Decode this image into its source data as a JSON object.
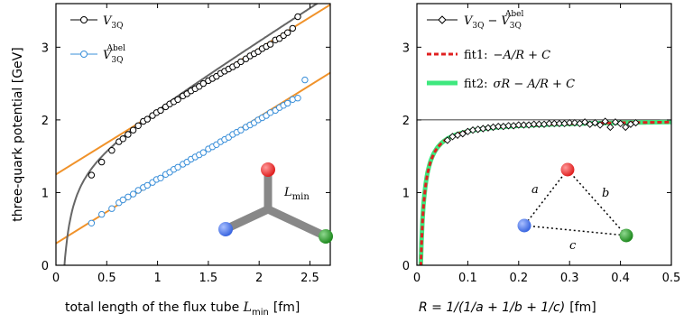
{
  "chart_data": [
    {
      "type": "scatter",
      "xlabel": "total length of the flux tube",
      "xlabel_symbol": "L",
      "xlabel_symbol_sub": "min",
      "xlabel_unit": "[fm]",
      "ylabel": "three-quark potential [GeV]",
      "xlim": [
        0,
        2.7
      ],
      "ylim": [
        0,
        3.6
      ],
      "xticks": [
        "0",
        "0.5",
        "1",
        "1.5",
        "2",
        "2.5"
      ],
      "xtick_values": [
        0,
        0.5,
        1,
        1.5,
        2,
        2.5
      ],
      "yticks": [
        "0",
        "1",
        "2",
        "3"
      ],
      "ytick_values": [
        0,
        1,
        2,
        3
      ],
      "legend_position": "top-left",
      "series": [
        {
          "name": "V",
          "name_sub": "3Q",
          "color": "#000000",
          "marker": "open-circle",
          "x": [
            0.35,
            0.45,
            0.55,
            0.62,
            0.66,
            0.71,
            0.76,
            0.81,
            0.86,
            0.9,
            0.95,
            0.99,
            1.03,
            1.08,
            1.12,
            1.16,
            1.2,
            1.25,
            1.29,
            1.33,
            1.37,
            1.41,
            1.45,
            1.5,
            1.54,
            1.58,
            1.62,
            1.66,
            1.7,
            1.74,
            1.78,
            1.82,
            1.87,
            1.91,
            1.95,
            1.99,
            2.03,
            2.07,
            2.11,
            2.16,
            2.2,
            2.24,
            2.28,
            2.33,
            2.38
          ],
          "y": [
            1.24,
            1.42,
            1.58,
            1.7,
            1.74,
            1.8,
            1.86,
            1.92,
            1.98,
            2.01,
            2.06,
            2.1,
            2.13,
            2.18,
            2.22,
            2.25,
            2.28,
            2.33,
            2.36,
            2.4,
            2.43,
            2.46,
            2.5,
            2.54,
            2.57,
            2.6,
            2.64,
            2.67,
            2.7,
            2.73,
            2.76,
            2.8,
            2.84,
            2.88,
            2.91,
            2.94,
            2.98,
            3.01,
            3.04,
            3.1,
            3.12,
            3.16,
            3.2,
            3.26,
            3.42
          ]
        },
        {
          "name": "V",
          "name_sub": "3Q",
          "name_sup": "Abel",
          "color": "#3a8fd9",
          "marker": "open-circle",
          "x": [
            0.35,
            0.45,
            0.55,
            0.62,
            0.66,
            0.71,
            0.76,
            0.81,
            0.86,
            0.9,
            0.95,
            0.99,
            1.03,
            1.08,
            1.12,
            1.16,
            1.2,
            1.25,
            1.29,
            1.33,
            1.37,
            1.41,
            1.45,
            1.5,
            1.54,
            1.58,
            1.62,
            1.66,
            1.7,
            1.74,
            1.78,
            1.82,
            1.87,
            1.91,
            1.95,
            1.99,
            2.03,
            2.07,
            2.11,
            2.16,
            2.2,
            2.24,
            2.28,
            2.33,
            2.38,
            2.45
          ],
          "y": [
            0.58,
            0.7,
            0.78,
            0.86,
            0.9,
            0.94,
            0.98,
            1.03,
            1.07,
            1.1,
            1.14,
            1.18,
            1.2,
            1.25,
            1.28,
            1.32,
            1.35,
            1.39,
            1.42,
            1.46,
            1.49,
            1.52,
            1.55,
            1.6,
            1.63,
            1.66,
            1.7,
            1.73,
            1.76,
            1.8,
            1.83,
            1.86,
            1.9,
            1.93,
            1.96,
            2.0,
            2.03,
            2.06,
            2.1,
            2.13,
            2.17,
            2.2,
            2.23,
            2.28,
            2.3,
            2.55
          ]
        }
      ],
      "lines": [
        {
          "kind": "linear",
          "color": "#f0922a",
          "intercept": 1.25,
          "slope": 0.865
        },
        {
          "kind": "linear",
          "color": "#f0922a",
          "intercept": 0.3,
          "slope": 0.87
        },
        {
          "kind": "fit",
          "color": "#666666",
          "sigma": 0.89,
          "A": 0.12,
          "C": 1.36
        }
      ],
      "inset": {
        "type": "y-junction",
        "label": "L",
        "label_sub": "min",
        "colors": {
          "red": "#e02020",
          "blue": "#3a66e0",
          "green": "#1f8a1f",
          "tube": "#888888"
        }
      }
    },
    {
      "type": "scatter",
      "xlabel": "R = 1/(1/a + 1/b + 1/c)",
      "xlabel_unit": "[fm]",
      "xlim": [
        0,
        0.5
      ],
      "ylim": [
        0,
        3.6
      ],
      "xticks": [
        "0",
        "0.1",
        "0.2",
        "0.3",
        "0.4",
        "0.5"
      ],
      "xtick_values": [
        0,
        0.1,
        0.2,
        0.3,
        0.4,
        0.5
      ],
      "yticks": [
        "0",
        "1",
        "2",
        "3"
      ],
      "ytick_values": [
        0,
        1,
        2,
        3
      ],
      "hline": 2.0,
      "legend_position": "top-left",
      "series": [
        {
          "name": "V",
          "name_sub": "3Q",
          "name_minus": "−",
          "name_sub2": "3Q",
          "name_sup2": "Abel",
          "color": "#000000",
          "marker": "open-diamond",
          "x": [
            0.06,
            0.07,
            0.08,
            0.09,
            0.1,
            0.11,
            0.12,
            0.13,
            0.14,
            0.15,
            0.16,
            0.17,
            0.18,
            0.19,
            0.2,
            0.21,
            0.22,
            0.23,
            0.24,
            0.25,
            0.26,
            0.27,
            0.28,
            0.29,
            0.3,
            0.31,
            0.32,
            0.33,
            0.34,
            0.35,
            0.36,
            0.37,
            0.38,
            0.39,
            0.4,
            0.41,
            0.42,
            0.43
          ],
          "y": [
            1.72,
            1.77,
            1.79,
            1.81,
            1.84,
            1.86,
            1.87,
            1.88,
            1.89,
            1.9,
            1.91,
            1.91,
            1.92,
            1.92,
            1.93,
            1.93,
            1.93,
            1.94,
            1.94,
            1.94,
            1.95,
            1.95,
            1.95,
            1.95,
            1.96,
            1.96,
            1.95,
            1.97,
            1.94,
            1.96,
            1.93,
            1.98,
            1.9,
            1.97,
            1.95,
            1.9,
            1.94,
            1.96
          ]
        }
      ],
      "fits": [
        {
          "name": "fit1:",
          "formula": "−A/R + C",
          "color": "#e02020",
          "style": "dashed",
          "A": 0.0155,
          "C": 2.0
        },
        {
          "name": "fit2:",
          "formula": "σR − A/R + C",
          "color": "#3ee87e",
          "style": "solid",
          "sigma": 0.02,
          "A": 0.015,
          "C": 1.99
        }
      ],
      "inset": {
        "type": "triangle",
        "labels": [
          "a",
          "b",
          "c"
        ],
        "colors": {
          "red": "#e02020",
          "blue": "#3a66e0",
          "green": "#1f8a1f"
        }
      }
    }
  ]
}
